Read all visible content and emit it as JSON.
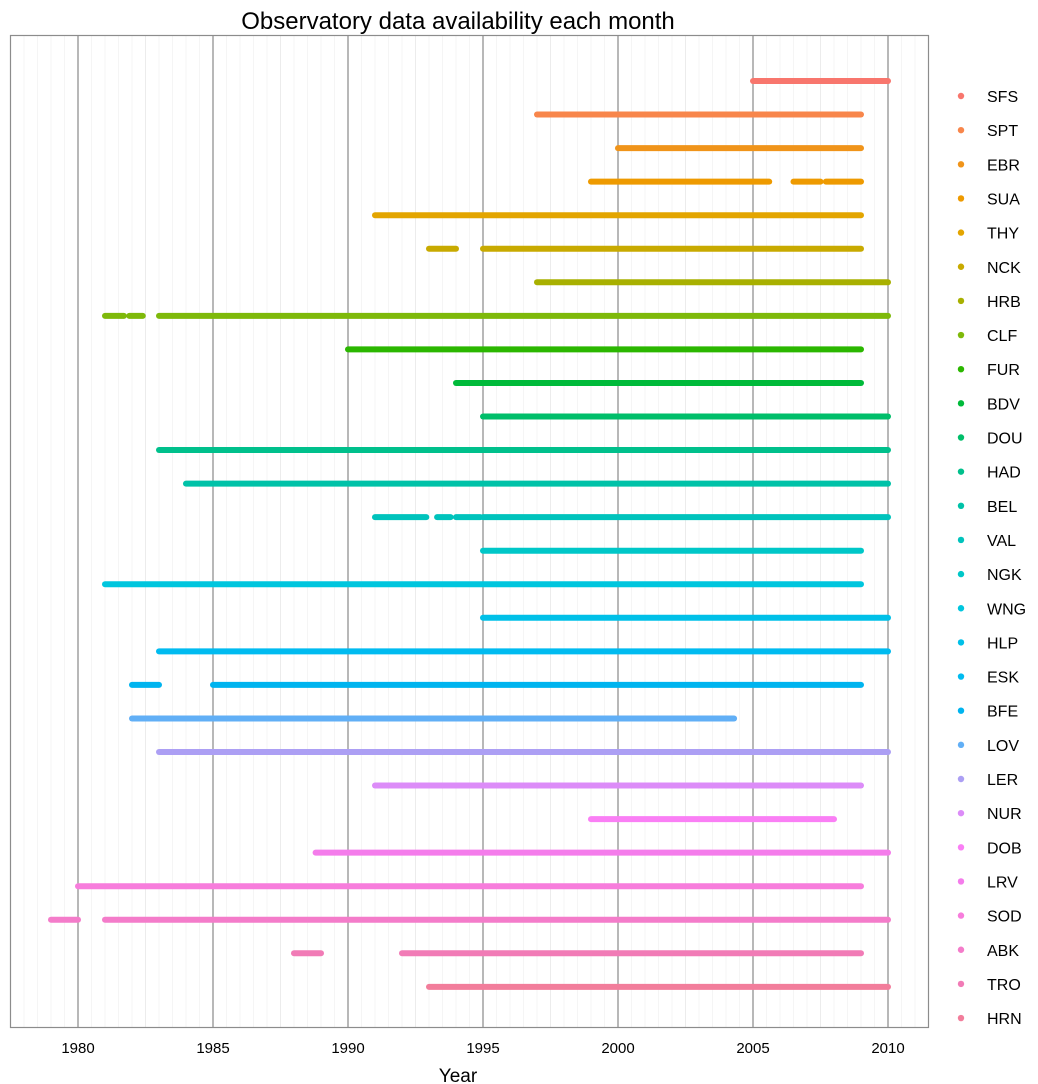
{
  "chart_data": {
    "type": "timeline",
    "title": "Observatory data availability each month",
    "xlabel": "Year",
    "ylabel": "",
    "xlim": [
      1977.5,
      2011.5
    ],
    "x_ticks": [
      1980,
      1985,
      1990,
      1995,
      2000,
      2005,
      2010
    ],
    "grid": true,
    "legend_position": "right",
    "series": [
      {
        "name": "SFS",
        "color": "#F8766D",
        "segments": [
          [
            2005.0,
            2010.0
          ]
        ]
      },
      {
        "name": "SPT",
        "color": "#F8864B",
        "segments": [
          [
            1997.0,
            2009.0
          ]
        ]
      },
      {
        "name": "EBR",
        "color": "#F0941A",
        "segments": [
          [
            2000.0,
            2009.0
          ]
        ]
      },
      {
        "name": "SUA",
        "color": "#EE9A00",
        "segments": [
          [
            1999.0,
            2005.6
          ],
          [
            2006.5,
            2007.5
          ],
          [
            2007.7,
            2009.0
          ]
        ]
      },
      {
        "name": "THY",
        "color": "#E3A500",
        "segments": [
          [
            1991.0,
            2009.0
          ]
        ]
      },
      {
        "name": "NCK",
        "color": "#C8AA00",
        "segments": [
          [
            1993.0,
            1994.0
          ],
          [
            1995.0,
            2009.0
          ]
        ]
      },
      {
        "name": "HRB",
        "color": "#A8B000",
        "segments": [
          [
            1997.0,
            2010.0
          ]
        ]
      },
      {
        "name": "CLF",
        "color": "#7EB90A",
        "segments": [
          [
            1981.0,
            1981.7
          ],
          [
            1981.9,
            1982.4
          ],
          [
            1983.0,
            2010.0
          ]
        ]
      },
      {
        "name": "FUR",
        "color": "#2BB700",
        "segments": [
          [
            1990.0,
            2009.0
          ]
        ]
      },
      {
        "name": "BDV",
        "color": "#00BA3A",
        "segments": [
          [
            1994.0,
            1994.7
          ],
          [
            1994.7,
            2009.0
          ]
        ]
      },
      {
        "name": "DOU",
        "color": "#00BE6A",
        "segments": [
          [
            1995.0,
            2010.0
          ]
        ]
      },
      {
        "name": "HAD",
        "color": "#00C08C",
        "segments": [
          [
            1983.0,
            2010.0
          ]
        ]
      },
      {
        "name": "BEL",
        "color": "#00C2A8",
        "segments": [
          [
            1984.0,
            2010.0
          ]
        ]
      },
      {
        "name": "VAL",
        "color": "#00C3BC",
        "segments": [
          [
            1991.0,
            1992.9
          ],
          [
            1993.3,
            1993.8
          ],
          [
            1994.0,
            1994.9
          ],
          [
            1995.0,
            2010.0
          ]
        ]
      },
      {
        "name": "NGK",
        "color": "#00C7C8",
        "segments": [
          [
            1995.0,
            2009.0
          ]
        ]
      },
      {
        "name": "WNG",
        "color": "#00C6DE",
        "segments": [
          [
            1981.0,
            2009.0
          ]
        ]
      },
      {
        "name": "HLP",
        "color": "#00C0E8",
        "segments": [
          [
            1995.0,
            2010.0
          ]
        ]
      },
      {
        "name": "ESK",
        "color": "#00BBF0",
        "segments": [
          [
            1983.0,
            2010.0
          ]
        ]
      },
      {
        "name": "BFE",
        "color": "#00B4EF",
        "segments": [
          [
            1982.0,
            1983.0
          ],
          [
            1985.0,
            2009.0
          ]
        ]
      },
      {
        "name": "LOV",
        "color": "#61AFF6",
        "segments": [
          [
            1982.0,
            2004.3
          ]
        ]
      },
      {
        "name": "LER",
        "color": "#AC9FF4",
        "segments": [
          [
            1983.0,
            2010.0
          ]
        ]
      },
      {
        "name": "NUR",
        "color": "#DC8CF8",
        "segments": [
          [
            1991.0,
            2009.0
          ]
        ]
      },
      {
        "name": "DOB",
        "color": "#FA7FF5",
        "segments": [
          [
            1999.0,
            2008.0
          ]
        ]
      },
      {
        "name": "LRV",
        "color": "#F47CEB",
        "segments": [
          [
            1988.8,
            2010.0
          ]
        ]
      },
      {
        "name": "SOD",
        "color": "#F77DDC",
        "segments": [
          [
            1980.0,
            2009.0
          ]
        ]
      },
      {
        "name": "ABK",
        "color": "#F47CCA",
        "segments": [
          [
            1979.0,
            1980.0
          ],
          [
            1981.0,
            2010.0
          ]
        ]
      },
      {
        "name": "TRO",
        "color": "#F17BB6",
        "segments": [
          [
            1988.0,
            1989.0
          ],
          [
            1992.0,
            2009.0
          ]
        ]
      },
      {
        "name": "HRN",
        "color": "#F27D9B",
        "segments": [
          [
            1993.0,
            2010.0
          ]
        ]
      }
    ],
    "legend_labels": [
      "SFS",
      "SPT",
      "EBR",
      "SUA",
      "THY",
      "NCK",
      "HRB",
      "CLF",
      "FUR",
      "BDV",
      "DOU",
      "HAD",
      "BEL",
      "VAL",
      "NGK",
      "WNG",
      "HLP",
      "ESK",
      "BFE",
      "LOV",
      "LER",
      "NUR",
      "DOB",
      "LRV",
      "SOD",
      "ABK",
      "TRO",
      "HRN"
    ]
  }
}
